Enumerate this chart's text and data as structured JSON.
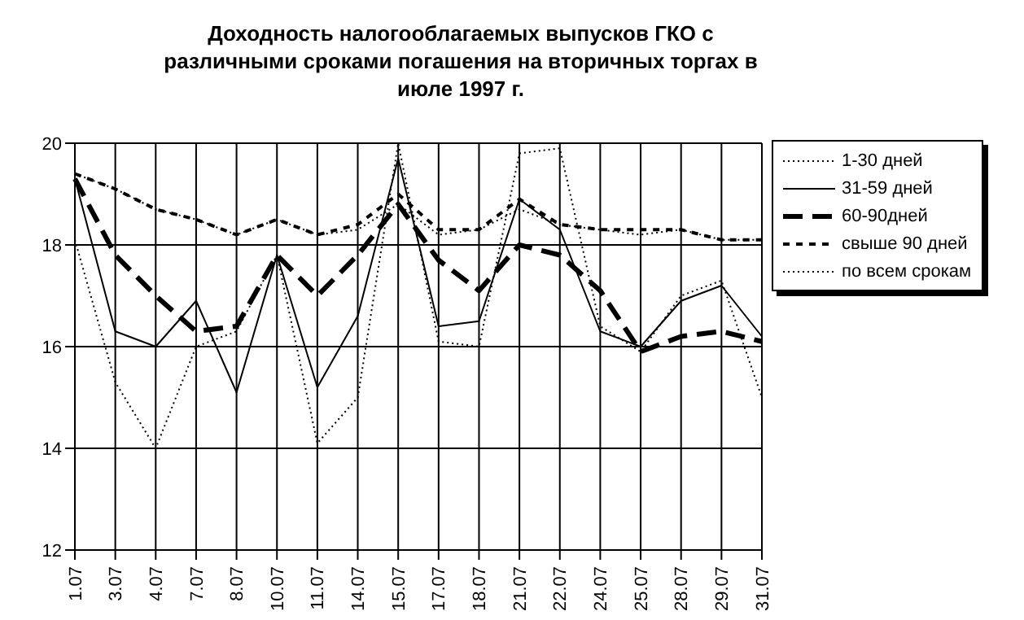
{
  "chart_data": {
    "type": "line",
    "title": "Доходность налогооблагаемых выпусков ГКО с различными сроками погашения на вторичных торгах в июле 1997 г.",
    "categories": [
      "1.07",
      "3.07",
      "4.07",
      "7.07",
      "8.07",
      "10.07",
      "11.07",
      "14.07",
      "15.07",
      "17.07",
      "18.07",
      "21.07",
      "22.07",
      "24.07",
      "25.07",
      "28.07",
      "29.07",
      "31.07"
    ],
    "series": [
      {
        "name": "1-30 дней",
        "color": "#000000",
        "line_style": "dotted",
        "values": [
          18.1,
          15.3,
          14.0,
          16.0,
          16.3,
          17.8,
          14.1,
          15.0,
          20.0,
          16.1,
          16.0,
          19.8,
          19.9,
          16.4,
          15.9,
          17.0,
          17.3,
          15.0
        ]
      },
      {
        "name": "31-59 дней",
        "color": "#000000",
        "line_style": "solid",
        "values": [
          19.3,
          16.3,
          16.0,
          16.9,
          15.1,
          17.8,
          15.2,
          16.6,
          19.7,
          16.4,
          16.5,
          18.9,
          18.3,
          16.3,
          16.0,
          16.9,
          17.2,
          16.2
        ]
      },
      {
        "name": "60-90дней",
        "color": "#000000",
        "line_style": "dashed",
        "values": [
          19.3,
          17.8,
          17.0,
          16.3,
          16.4,
          17.8,
          17.0,
          17.8,
          18.8,
          17.7,
          17.1,
          18.0,
          17.8,
          17.1,
          15.9,
          16.2,
          16.3,
          16.1
        ]
      },
      {
        "name": "свыше 90 дней",
        "color": "#000000",
        "line_style": "dashed",
        "values": [
          19.4,
          19.1,
          18.7,
          18.5,
          18.2,
          18.5,
          18.2,
          18.4,
          19.0,
          18.3,
          18.3,
          18.9,
          18.4,
          18.3,
          18.3,
          18.3,
          18.1,
          18.1
        ]
      },
      {
        "name": "по всем срокам",
        "color": "#000000",
        "line_style": "dotted",
        "values": [
          19.4,
          19.1,
          18.7,
          18.5,
          18.2,
          18.5,
          18.2,
          18.3,
          18.8,
          18.2,
          18.3,
          18.7,
          18.4,
          18.3,
          18.2,
          18.3,
          18.1,
          18.1
        ]
      }
    ],
    "ylim": [
      12,
      20
    ],
    "yticks": [
      12,
      14,
      16,
      18,
      20
    ],
    "grid": true,
    "legend": "top right",
    "marker": "none"
  }
}
